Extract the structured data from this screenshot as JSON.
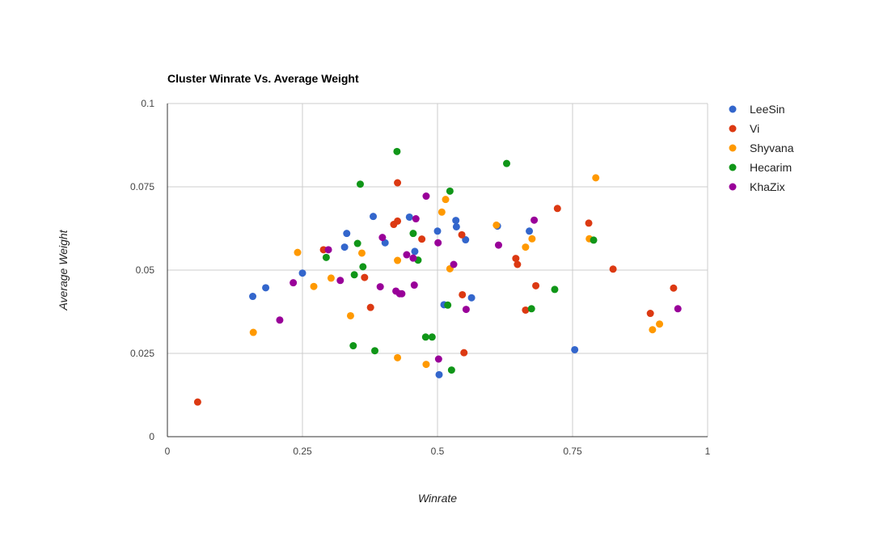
{
  "chart_data": {
    "type": "scatter",
    "title": "Cluster Winrate Vs. Average Weight",
    "xlabel": "Winrate",
    "ylabel": "Average Weight",
    "xlim": [
      0,
      1
    ],
    "ylim": [
      0,
      0.1
    ],
    "x_ticks": [
      "0",
      "0.25",
      "0.5",
      "0.75",
      "1"
    ],
    "x_tick_values": [
      0,
      0.25,
      0.5,
      0.75,
      1
    ],
    "y_ticks": [
      "0",
      "0.025",
      "0.05",
      "0.075",
      "0.1"
    ],
    "y_tick_values": [
      0,
      0.025,
      0.05,
      0.075,
      0.1
    ],
    "grid": true,
    "legend_position": "right",
    "series": [
      {
        "name": "LeeSin",
        "color": "#3366cc",
        "points": [
          [
            0.158,
            0.0421
          ],
          [
            0.182,
            0.0447
          ],
          [
            0.25,
            0.0491
          ],
          [
            0.328,
            0.0569
          ],
          [
            0.332,
            0.061
          ],
          [
            0.381,
            0.0661
          ],
          [
            0.403,
            0.0582
          ],
          [
            0.448,
            0.0659
          ],
          [
            0.458,
            0.0556
          ],
          [
            0.5,
            0.0617
          ],
          [
            0.503,
            0.0186
          ],
          [
            0.512,
            0.0396
          ],
          [
            0.534,
            0.0649
          ],
          [
            0.535,
            0.063
          ],
          [
            0.552,
            0.0591
          ],
          [
            0.563,
            0.0417
          ],
          [
            0.611,
            0.0632
          ],
          [
            0.67,
            0.0617
          ],
          [
            0.754,
            0.0261
          ]
        ]
      },
      {
        "name": "Vi",
        "color": "#dc3912",
        "points": [
          [
            0.056,
            0.0104
          ],
          [
            0.289,
            0.0561
          ],
          [
            0.365,
            0.0478
          ],
          [
            0.376,
            0.0388
          ],
          [
            0.419,
            0.0637
          ],
          [
            0.426,
            0.0647
          ],
          [
            0.426,
            0.0762
          ],
          [
            0.471,
            0.0593
          ],
          [
            0.545,
            0.0606
          ],
          [
            0.546,
            0.0426
          ],
          [
            0.549,
            0.0252
          ],
          [
            0.645,
            0.0535
          ],
          [
            0.648,
            0.0517
          ],
          [
            0.663,
            0.038
          ],
          [
            0.682,
            0.0453
          ],
          [
            0.722,
            0.0685
          ],
          [
            0.78,
            0.0641
          ],
          [
            0.825,
            0.0503
          ],
          [
            0.894,
            0.037
          ],
          [
            0.937,
            0.0446
          ]
        ]
      },
      {
        "name": "Shyvana",
        "color": "#ff9900",
        "points": [
          [
            0.159,
            0.0313
          ],
          [
            0.241,
            0.0553
          ],
          [
            0.271,
            0.0451
          ],
          [
            0.303,
            0.0476
          ],
          [
            0.339,
            0.0363
          ],
          [
            0.36,
            0.0551
          ],
          [
            0.426,
            0.0529
          ],
          [
            0.426,
            0.0237
          ],
          [
            0.479,
            0.0217
          ],
          [
            0.508,
            0.0674
          ],
          [
            0.515,
            0.0712
          ],
          [
            0.523,
            0.0504
          ],
          [
            0.609,
            0.0635
          ],
          [
            0.663,
            0.0569
          ],
          [
            0.675,
            0.0594
          ],
          [
            0.781,
            0.0594
          ],
          [
            0.793,
            0.0777
          ],
          [
            0.898,
            0.0321
          ],
          [
            0.911,
            0.0338
          ]
        ]
      },
      {
        "name": "Hecarim",
        "color": "#109618",
        "points": [
          [
            0.294,
            0.0538
          ],
          [
            0.344,
            0.0273
          ],
          [
            0.346,
            0.0486
          ],
          [
            0.352,
            0.058
          ],
          [
            0.357,
            0.0758
          ],
          [
            0.362,
            0.051
          ],
          [
            0.384,
            0.0258
          ],
          [
            0.425,
            0.0856
          ],
          [
            0.455,
            0.061
          ],
          [
            0.464,
            0.053
          ],
          [
            0.478,
            0.0299
          ],
          [
            0.49,
            0.0299
          ],
          [
            0.519,
            0.0395
          ],
          [
            0.523,
            0.0737
          ],
          [
            0.526,
            0.02
          ],
          [
            0.628,
            0.082
          ],
          [
            0.674,
            0.0384
          ],
          [
            0.717,
            0.0442
          ],
          [
            0.789,
            0.059
          ]
        ]
      },
      {
        "name": "KhaZix",
        "color": "#990099",
        "points": [
          [
            0.208,
            0.035
          ],
          [
            0.233,
            0.0462
          ],
          [
            0.298,
            0.0561
          ],
          [
            0.32,
            0.0469
          ],
          [
            0.394,
            0.045
          ],
          [
            0.398,
            0.0598
          ],
          [
            0.423,
            0.0437
          ],
          [
            0.43,
            0.0429
          ],
          [
            0.434,
            0.0429
          ],
          [
            0.443,
            0.0546
          ],
          [
            0.455,
            0.0536
          ],
          [
            0.457,
            0.0455
          ],
          [
            0.46,
            0.0654
          ],
          [
            0.479,
            0.0722
          ],
          [
            0.501,
            0.0582
          ],
          [
            0.502,
            0.0233
          ],
          [
            0.53,
            0.0517
          ],
          [
            0.553,
            0.0382
          ],
          [
            0.613,
            0.0575
          ],
          [
            0.679,
            0.065
          ],
          [
            0.945,
            0.0384
          ]
        ]
      }
    ]
  }
}
